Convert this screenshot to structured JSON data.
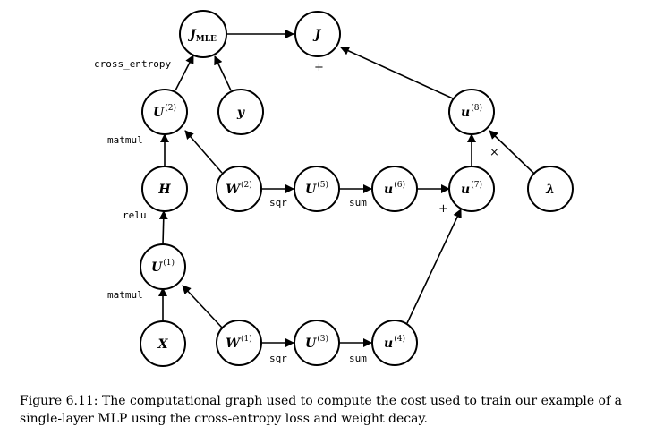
{
  "nodes": {
    "jmle": {
      "base": "J",
      "sub": "MLE",
      "sup": ""
    },
    "j": {
      "base": "J",
      "sub": "",
      "sup": ""
    },
    "u2": {
      "base": "U",
      "sub": "",
      "sup": "(2)"
    },
    "y": {
      "base": "y",
      "sub": "",
      "sup": ""
    },
    "u8": {
      "base": "u",
      "sub": "",
      "sup": "(8)"
    },
    "h": {
      "base": "H",
      "sub": "",
      "sup": ""
    },
    "w2": {
      "base": "W",
      "sub": "",
      "sup": "(2)"
    },
    "u5": {
      "base": "U",
      "sub": "",
      "sup": "(5)"
    },
    "u6": {
      "base": "u",
      "sub": "",
      "sup": "(6)"
    },
    "u7": {
      "base": "u",
      "sub": "",
      "sup": "(7)"
    },
    "lambda": {
      "base": "λ",
      "sub": "",
      "sup": ""
    },
    "u1": {
      "base": "U",
      "sub": "",
      "sup": "(1)"
    },
    "x": {
      "base": "X",
      "sub": "",
      "sup": ""
    },
    "w1": {
      "base": "W",
      "sub": "",
      "sup": "(1)"
    },
    "u3": {
      "base": "U",
      "sub": "",
      "sup": "(3)"
    },
    "u4": {
      "base": "u",
      "sub": "",
      "sup": "(4)"
    }
  },
  "labels": {
    "cross_entropy": "cross_entropy",
    "matmul_top": "matmul",
    "relu": "relu",
    "matmul_bottom": "matmul",
    "sqr_top": "sqr",
    "sum_top": "sum",
    "sqr_bottom": "sqr",
    "sum_bottom": "sum",
    "plus_j": "+",
    "plus_u7": "+",
    "times_u8": "×"
  },
  "caption": "Figure 6.11: The computational graph used to compute the cost used to train our example of a single-layer MLP using the cross-entropy loss and weight decay."
}
